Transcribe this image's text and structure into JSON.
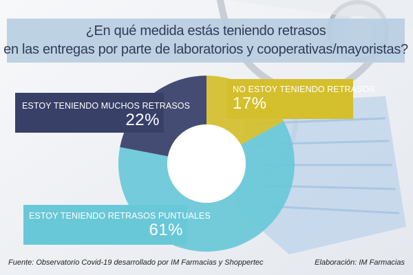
{
  "title": {
    "line1": "¿En qué medida estás teniendo retrasos",
    "line2": "en las entregas por parte de laboratorios y cooperativas/mayoristas?"
  },
  "chart_data": {
    "type": "pie",
    "style": "donut",
    "categories": [
      "NO ESTOY TENIENDO RETRASOS",
      "ESTOY TENIENDO RETRASOS PUNTUALES",
      "ESTOY TENIENDO MUCHOS RETRASOS"
    ],
    "values": [
      17,
      61,
      22
    ],
    "labels": [
      "17%",
      "61%",
      "22%"
    ],
    "colors": [
      "#d4bf2c",
      "#69c8d8",
      "#384068"
    ]
  },
  "footer": {
    "source": "Fuente: Observatorio Covid-19 desarrollado por IM Farmacias y Shoppertec",
    "credit": "Elaboración: IM Farmacias"
  }
}
